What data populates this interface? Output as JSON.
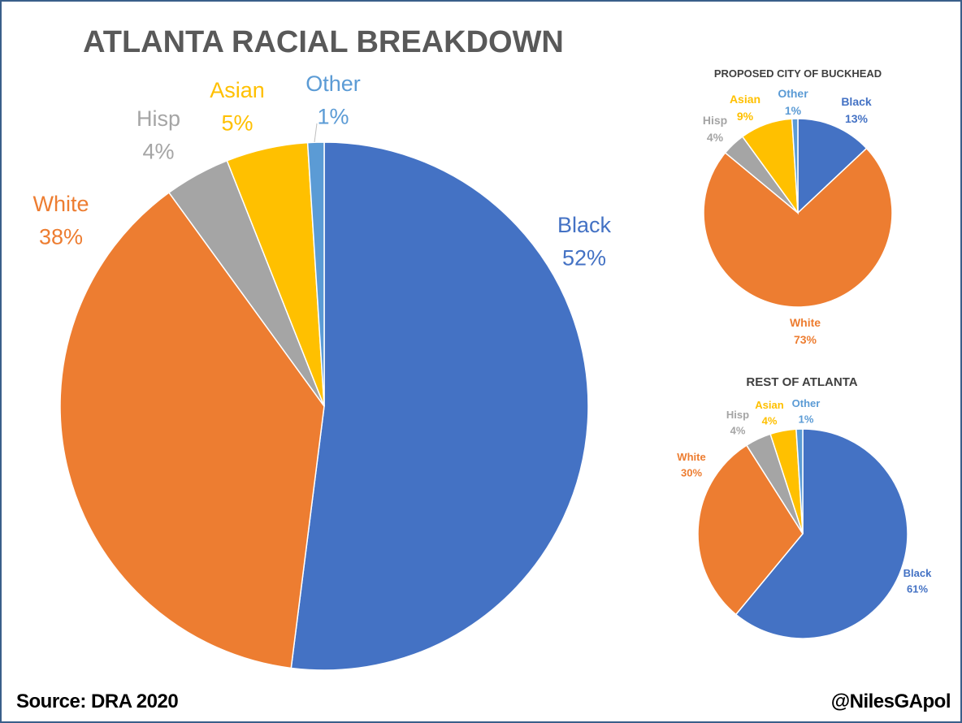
{
  "chart_data": [
    {
      "type": "pie",
      "title": "ATLANTA RACIAL BREAKDOWN",
      "start_angle": 0,
      "slices": [
        {
          "name": "Black",
          "value": 52,
          "label": "52%",
          "color": "#4472C4"
        },
        {
          "name": "White",
          "value": 38,
          "label": "38%",
          "color": "#ED7D31"
        },
        {
          "name": "Hisp",
          "value": 4,
          "label": "4%",
          "color": "#A5A5A5"
        },
        {
          "name": "Asian",
          "value": 5,
          "label": "5%",
          "color": "#FFC000"
        },
        {
          "name": "Other",
          "value": 1,
          "label": "1%",
          "color": "#5B9BD5"
        }
      ]
    },
    {
      "type": "pie",
      "title": "PROPOSED CITY OF BUCKHEAD",
      "start_angle": 0,
      "slices": [
        {
          "name": "Black",
          "value": 13,
          "label": "13%",
          "color": "#4472C4"
        },
        {
          "name": "White",
          "value": 73,
          "label": "73%",
          "color": "#ED7D31"
        },
        {
          "name": "Hisp",
          "value": 4,
          "label": "4%",
          "color": "#A5A5A5"
        },
        {
          "name": "Asian",
          "value": 9,
          "label": "9%",
          "color": "#FFC000"
        },
        {
          "name": "Other",
          "value": 1,
          "label": "1%",
          "color": "#5B9BD5"
        }
      ]
    },
    {
      "type": "pie",
      "title": "REST OF ATLANTA",
      "start_angle": 0,
      "slices": [
        {
          "name": "Black",
          "value": 61,
          "label": "61%",
          "color": "#4472C4"
        },
        {
          "name": "White",
          "value": 30,
          "label": "30%",
          "color": "#ED7D31"
        },
        {
          "name": "Hisp",
          "value": 4,
          "label": "4%",
          "color": "#A5A5A5"
        },
        {
          "name": "Asian",
          "value": 4,
          "label": "4%",
          "color": "#FFC000"
        },
        {
          "name": "Other",
          "value": 1,
          "label": "1%",
          "color": "#5B9BD5"
        }
      ]
    }
  ],
  "footer": {
    "source": "Source: DRA 2020",
    "handle": "@NilesGApol"
  }
}
